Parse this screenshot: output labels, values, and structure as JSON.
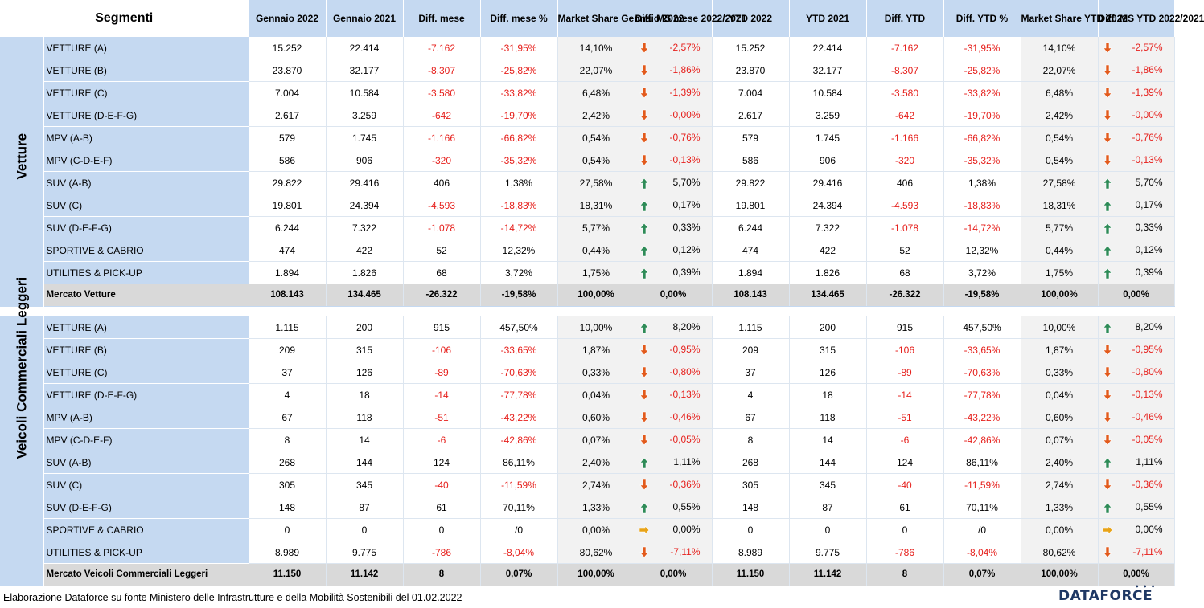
{
  "header": {
    "segment_label": "Segmenti",
    "columns": [
      "Gennaio 2022",
      "Gennaio 2021",
      "Diff. mese",
      "Diff. mese %",
      "Market Share Gennaio 2022",
      "Diff. MS mese 2022/2021",
      "YTD 2022",
      "YTD 2021",
      "Diff. YTD",
      "Diff. YTD %",
      "Market Share YTD 2022",
      "Diff. MS YTD 2022/2021"
    ]
  },
  "colors": {
    "header_bg": "#c5d9f1",
    "negative": "#e6201c",
    "arrow_down": "#e25a1c",
    "arrow_up": "#2e8b57",
    "arrow_flat": "#e8a317",
    "total_bg": "#d9d9d9",
    "ms_bg": "#f2f2f2"
  },
  "sections": [
    {
      "name": "Vetture",
      "rows": [
        [
          "VETTURE (A)",
          "15.252",
          "22.414",
          "-7.162",
          "-31,95%",
          "14,10%",
          "-2,57%",
          "15.252",
          "22.414",
          "-7.162",
          "-31,95%",
          "14,10%",
          "-2,57%"
        ],
        [
          "VETTURE (B)",
          "23.870",
          "32.177",
          "-8.307",
          "-25,82%",
          "22,07%",
          "-1,86%",
          "23.870",
          "32.177",
          "-8.307",
          "-25,82%",
          "22,07%",
          "-1,86%"
        ],
        [
          "VETTURE (C)",
          "7.004",
          "10.584",
          "-3.580",
          "-33,82%",
          "6,48%",
          "-1,39%",
          "7.004",
          "10.584",
          "-3.580",
          "-33,82%",
          "6,48%",
          "-1,39%"
        ],
        [
          "VETTURE (D-E-F-G)",
          "2.617",
          "3.259",
          "-642",
          "-19,70%",
          "2,42%",
          "-0,00%",
          "2.617",
          "3.259",
          "-642",
          "-19,70%",
          "2,42%",
          "-0,00%"
        ],
        [
          "MPV (A-B)",
          "579",
          "1.745",
          "-1.166",
          "-66,82%",
          "0,54%",
          "-0,76%",
          "579",
          "1.745",
          "-1.166",
          "-66,82%",
          "0,54%",
          "-0,76%"
        ],
        [
          "MPV (C-D-E-F)",
          "586",
          "906",
          "-320",
          "-35,32%",
          "0,54%",
          "-0,13%",
          "586",
          "906",
          "-320",
          "-35,32%",
          "0,54%",
          "-0,13%"
        ],
        [
          "SUV (A-B)",
          "29.822",
          "29.416",
          "406",
          "1,38%",
          "27,58%",
          "5,70%",
          "29.822",
          "29.416",
          "406",
          "1,38%",
          "27,58%",
          "5,70%"
        ],
        [
          "SUV (C)",
          "19.801",
          "24.394",
          "-4.593",
          "-18,83%",
          "18,31%",
          "0,17%",
          "19.801",
          "24.394",
          "-4.593",
          "-18,83%",
          "18,31%",
          "0,17%"
        ],
        [
          "SUV (D-E-F-G)",
          "6.244",
          "7.322",
          "-1.078",
          "-14,72%",
          "5,77%",
          "0,33%",
          "6.244",
          "7.322",
          "-1.078",
          "-14,72%",
          "5,77%",
          "0,33%"
        ],
        [
          "SPORTIVE & CABRIO",
          "474",
          "422",
          "52",
          "12,32%",
          "0,44%",
          "0,12%",
          "474",
          "422",
          "52",
          "12,32%",
          "0,44%",
          "0,12%"
        ],
        [
          "UTILITIES & PICK-UP",
          "1.894",
          "1.826",
          "68",
          "3,72%",
          "1,75%",
          "0,39%",
          "1.894",
          "1.826",
          "68",
          "3,72%",
          "1,75%",
          "0,39%"
        ]
      ],
      "total": [
        "Mercato Vetture",
        "108.143",
        "134.465",
        "-26.322",
        "-19,58%",
        "100,00%",
        "0,00%",
        "108.143",
        "134.465",
        "-26.322",
        "-19,58%",
        "100,00%",
        "0,00%"
      ]
    },
    {
      "name": "Veicoli Commerciali Leggeri",
      "rows": [
        [
          "VETTURE (A)",
          "1.115",
          "200",
          "915",
          "457,50%",
          "10,00%",
          "8,20%",
          "1.115",
          "200",
          "915",
          "457,50%",
          "10,00%",
          "8,20%"
        ],
        [
          "VETTURE (B)",
          "209",
          "315",
          "-106",
          "-33,65%",
          "1,87%",
          "-0,95%",
          "209",
          "315",
          "-106",
          "-33,65%",
          "1,87%",
          "-0,95%"
        ],
        [
          "VETTURE (C)",
          "37",
          "126",
          "-89",
          "-70,63%",
          "0,33%",
          "-0,80%",
          "37",
          "126",
          "-89",
          "-70,63%",
          "0,33%",
          "-0,80%"
        ],
        [
          "VETTURE (D-E-F-G)",
          "4",
          "18",
          "-14",
          "-77,78%",
          "0,04%",
          "-0,13%",
          "4",
          "18",
          "-14",
          "-77,78%",
          "0,04%",
          "-0,13%"
        ],
        [
          "MPV (A-B)",
          "67",
          "118",
          "-51",
          "-43,22%",
          "0,60%",
          "-0,46%",
          "67",
          "118",
          "-51",
          "-43,22%",
          "0,60%",
          "-0,46%"
        ],
        [
          "MPV (C-D-E-F)",
          "8",
          "14",
          "-6",
          "-42,86%",
          "0,07%",
          "-0,05%",
          "8",
          "14",
          "-6",
          "-42,86%",
          "0,07%",
          "-0,05%"
        ],
        [
          "SUV (A-B)",
          "268",
          "144",
          "124",
          "86,11%",
          "2,40%",
          "1,11%",
          "268",
          "144",
          "124",
          "86,11%",
          "2,40%",
          "1,11%"
        ],
        [
          "SUV (C)",
          "305",
          "345",
          "-40",
          "-11,59%",
          "2,74%",
          "-0,36%",
          "305",
          "345",
          "-40",
          "-11,59%",
          "2,74%",
          "-0,36%"
        ],
        [
          "SUV (D-E-F-G)",
          "148",
          "87",
          "61",
          "70,11%",
          "1,33%",
          "0,55%",
          "148",
          "87",
          "61",
          "70,11%",
          "1,33%",
          "0,55%"
        ],
        [
          "SPORTIVE & CABRIO",
          "0",
          "0",
          "0",
          "/0",
          "0,00%",
          "0,00%",
          "0",
          "0",
          "0",
          "/0",
          "0,00%",
          "0,00%"
        ],
        [
          "UTILITIES & PICK-UP",
          "8.989",
          "9.775",
          "-786",
          "-8,04%",
          "80,62%",
          "-7,11%",
          "8.989",
          "9.775",
          "-786",
          "-8,04%",
          "80,62%",
          "-7,11%"
        ]
      ],
      "total": [
        "Mercato Veicoli Commerciali Leggeri",
        "11.150",
        "11.142",
        "8",
        "0,07%",
        "100,00%",
        "0,00%",
        "11.150",
        "11.142",
        "8",
        "0,07%",
        "100,00%",
        "0,00%"
      ]
    }
  ],
  "footer": {
    "source_note": "Elaborazione Dataforce su fonte Ministero delle Infrastrutture e della Mobilità Sostenibili del 01.02.2022",
    "logo_text": "DATAFORCE"
  }
}
